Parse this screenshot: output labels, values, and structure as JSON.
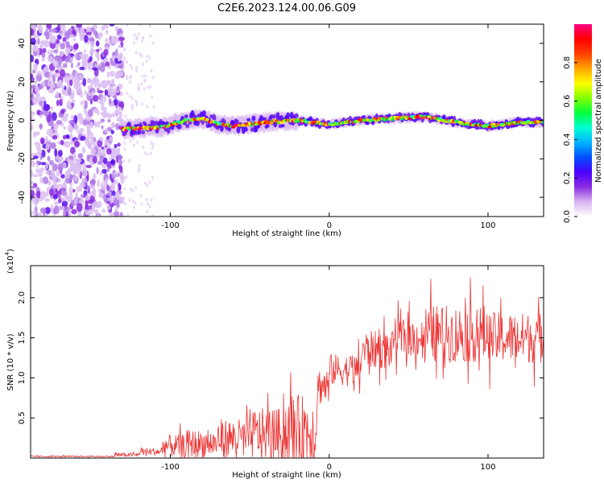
{
  "title": "C2E6.2023.124.00.06.G09",
  "chart_data": [
    {
      "type": "heatmap",
      "name": "spectrogram",
      "xlabel": "Height of straight line (km)",
      "ylabel": "Frequency (Hz)",
      "xlim": [
        -188,
        135
      ],
      "ylim": [
        -50,
        50
      ],
      "xticks": [
        -100,
        0,
        100
      ],
      "yticks": [
        -40,
        -20,
        0,
        20,
        40
      ],
      "colorbar": {
        "label": "Normalized spectral amplitude",
        "range": [
          0,
          1
        ],
        "ticks": [
          "0.0",
          "0.2",
          "0.4",
          "0.6",
          "0.8"
        ],
        "tick_values": [
          0,
          0.2,
          0.4,
          0.6,
          0.8
        ],
        "colors": [
          "#ffffff",
          "#d8b4f0",
          "#8a2be2",
          "#4b00ff",
          "#0050ff",
          "#00b4ff",
          "#00ffd0",
          "#00ff40",
          "#7fff00",
          "#ffff00",
          "#ffa500",
          "#ff4000",
          "#ff0000",
          "#ff0080"
        ]
      },
      "noise_region": {
        "x_range": [
          -188,
          -130
        ],
        "y_range": [
          -50,
          50
        ]
      },
      "signal_track": [
        {
          "x": -130,
          "y": -4.5
        },
        {
          "x": -120,
          "y": -4
        },
        {
          "x": -105,
          "y": -3.5
        },
        {
          "x": -90,
          "y": 0
        },
        {
          "x": -80,
          "y": 1
        },
        {
          "x": -70,
          "y": -2
        },
        {
          "x": -60,
          "y": -3
        },
        {
          "x": -40,
          "y": -1
        },
        {
          "x": -20,
          "y": 0
        },
        {
          "x": 0,
          "y": -2
        },
        {
          "x": 20,
          "y": 0
        },
        {
          "x": 40,
          "y": 1
        },
        {
          "x": 60,
          "y": 2
        },
        {
          "x": 80,
          "y": -1
        },
        {
          "x": 100,
          "y": -3
        },
        {
          "x": 120,
          "y": -1
        },
        {
          "x": 135,
          "y": -1
        }
      ]
    },
    {
      "type": "line",
      "name": "snr",
      "xlabel": "Height of straight line (km)",
      "ylabel": "SNR (10 * v/v)",
      "yscale_label": "(x10",
      "yscale_exp": "4",
      "xlim": [
        -188,
        135
      ],
      "ylim": [
        0,
        2.4
      ],
      "xticks": [
        -100,
        0,
        100
      ],
      "yticks": [
        "0.5",
        "1.0",
        "1.5",
        "2.0"
      ],
      "ytick_values": [
        0.5,
        1.0,
        1.5,
        2.0
      ],
      "line_color": "#ee3333",
      "segments": [
        {
          "x_range": [
            -188,
            -135
          ],
          "mean": 0.02,
          "amp": 0.01
        },
        {
          "x_range": [
            -135,
            -120
          ],
          "mean": 0.04,
          "amp": 0.03
        },
        {
          "x_range": [
            -120,
            -105
          ],
          "mean": 0.08,
          "amp": 0.06
        },
        {
          "x_range": [
            -105,
            -90
          ],
          "mean": 0.15,
          "amp": 0.18
        },
        {
          "x_range": [
            -90,
            -70
          ],
          "mean": 0.18,
          "amp": 0.22
        },
        {
          "x_range": [
            -70,
            -50
          ],
          "mean": 0.25,
          "amp": 0.3
        },
        {
          "x_range": [
            -50,
            -30
          ],
          "mean": 0.3,
          "amp": 0.4
        },
        {
          "x_range": [
            -30,
            -8
          ],
          "mean": 0.35,
          "amp": 0.55
        },
        {
          "x_range": [
            -8,
            0
          ],
          "mean": 0.9,
          "amp": 0.3
        },
        {
          "x_range": [
            0,
            20
          ],
          "mean": 1.1,
          "amp": 0.25
        },
        {
          "x_range": [
            20,
            40
          ],
          "mean": 1.35,
          "amp": 0.3
        },
        {
          "x_range": [
            40,
            60
          ],
          "mean": 1.5,
          "amp": 0.3
        },
        {
          "x_range": [
            60,
            100
          ],
          "mean": 1.55,
          "amp": 0.45
        },
        {
          "x_range": [
            100,
            135
          ],
          "mean": 1.5,
          "amp": 0.4
        }
      ],
      "max_value": 2.4
    }
  ]
}
